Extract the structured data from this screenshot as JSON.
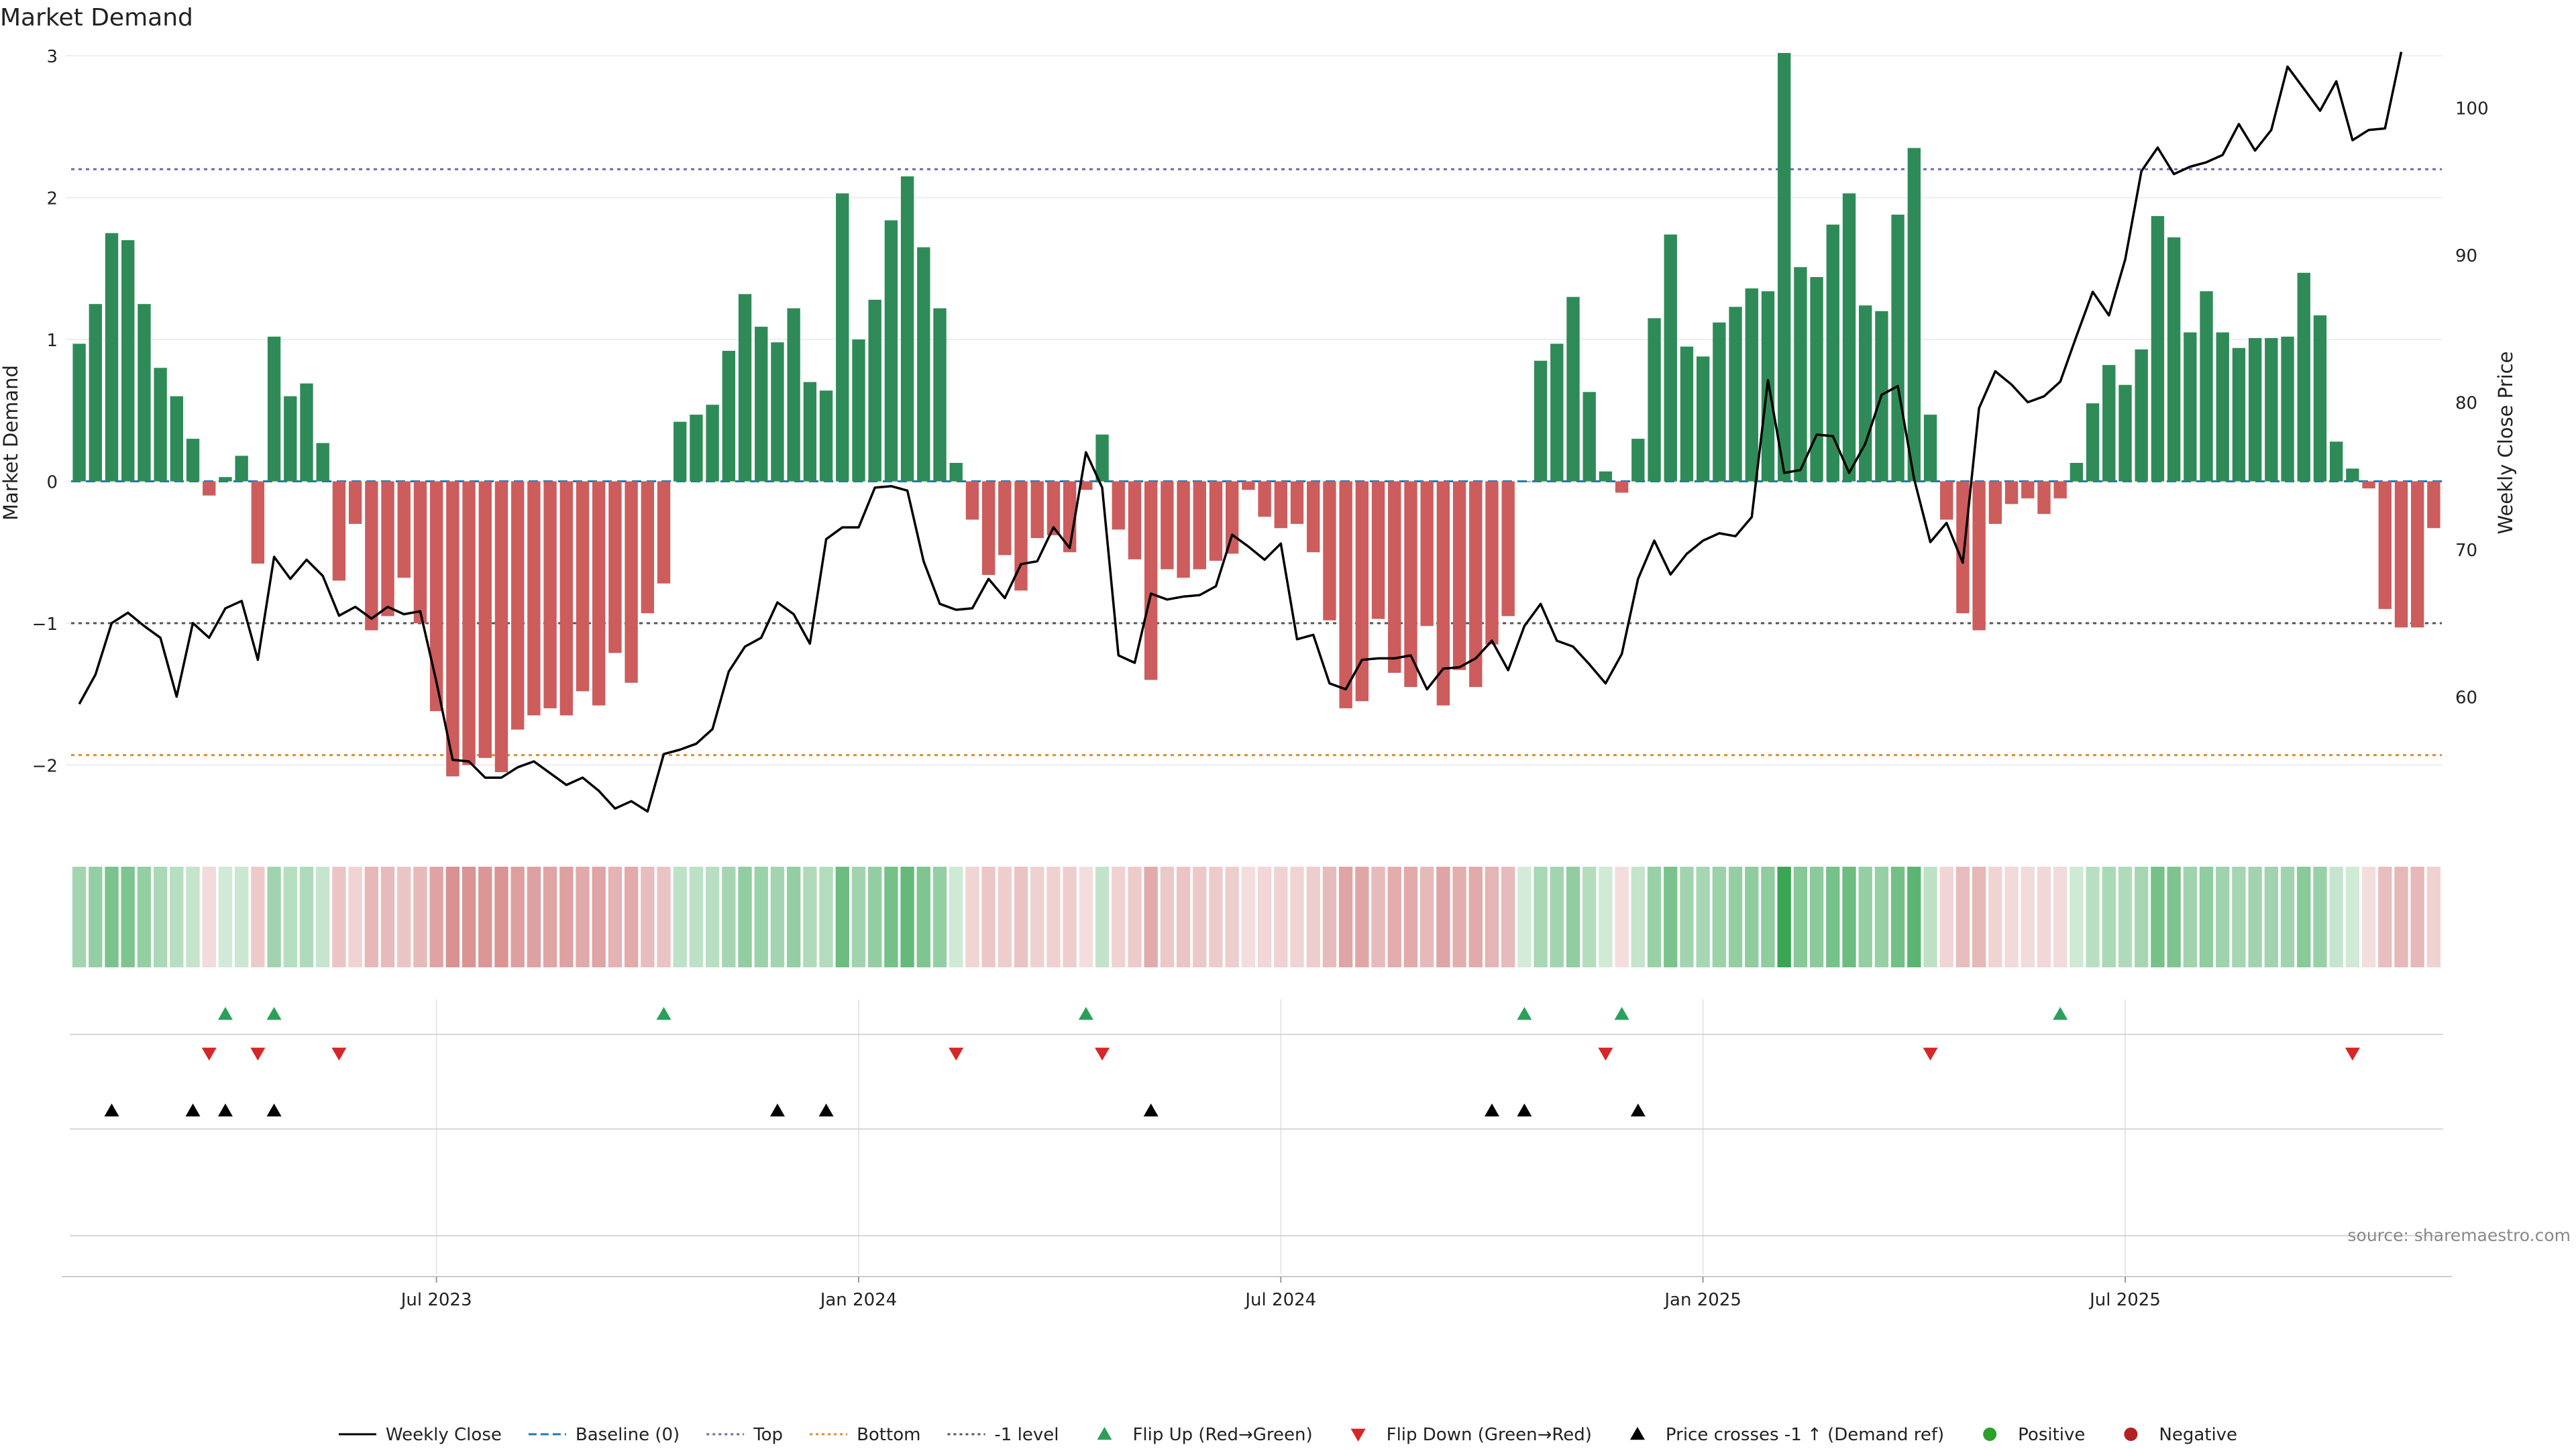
{
  "chart_data": {
    "type": "bar",
    "title": "Market Demand",
    "ylabel_left": "Market Demand",
    "ylabel_right": "Weekly Close Price",
    "ylim_left": [
      -2.4,
      3.1
    ],
    "ylim_right": [
      51.5,
      104.5
    ],
    "left_ticks": [
      {
        "v": 3,
        "label": "3"
      },
      {
        "v": 2,
        "label": "2"
      },
      {
        "v": 1,
        "label": "1"
      },
      {
        "v": 0,
        "label": "0"
      },
      {
        "v": -1,
        "label": "−1"
      },
      {
        "v": -2,
        "label": "−2"
      }
    ],
    "right_ticks": [
      {
        "v": 100,
        "label": "100"
      },
      {
        "v": 90,
        "label": "90"
      },
      {
        "v": 80,
        "label": "80"
      },
      {
        "v": 70,
        "label": "70"
      },
      {
        "v": 60,
        "label": "60"
      }
    ],
    "x_ticks": [
      {
        "i": 22,
        "label": "Jul 2023"
      },
      {
        "i": 48,
        "label": "Jan 2024"
      },
      {
        "i": 74,
        "label": "Jul 2024"
      },
      {
        "i": 100,
        "label": "Jan 2025"
      },
      {
        "i": 126,
        "label": "Jul 2025"
      }
    ],
    "reference_lines": {
      "top": 2.2,
      "bottom": -1.93,
      "minus_one": -1.0,
      "baseline": 0
    },
    "demand": [
      0.97,
      1.25,
      1.75,
      1.7,
      1.25,
      0.8,
      0.6,
      0.3,
      -0.1,
      0.03,
      0.18,
      -0.58,
      1.02,
      0.6,
      0.69,
      0.27,
      -0.7,
      -0.3,
      -1.05,
      -0.95,
      -0.68,
      -1.0,
      -1.62,
      -2.08,
      -2.0,
      -1.95,
      -2.05,
      -1.75,
      -1.65,
      -1.6,
      -1.65,
      -1.48,
      -1.58,
      -1.21,
      -1.42,
      -0.93,
      -0.72,
      0.42,
      0.47,
      0.54,
      0.92,
      1.32,
      1.09,
      0.98,
      1.22,
      0.7,
      0.64,
      2.03,
      1.0,
      1.28,
      1.84,
      2.15,
      1.65,
      1.22,
      0.13,
      -0.27,
      -0.66,
      -0.52,
      -0.77,
      -0.4,
      -0.38,
      -0.5,
      -0.06,
      0.33,
      -0.34,
      -0.55,
      -1.4,
      -0.62,
      -0.68,
      -0.62,
      -0.56,
      -0.51,
      -0.06,
      -0.25,
      -0.33,
      -0.3,
      -0.5,
      -0.98,
      -1.6,
      -1.55,
      -0.97,
      -1.35,
      -1.45,
      -1.02,
      -1.58,
      -1.33,
      -1.45,
      -1.15,
      -0.95,
      0.0,
      0.85,
      0.97,
      1.3,
      0.63,
      0.07,
      -0.08,
      0.3,
      1.15,
      1.74,
      0.95,
      0.88,
      1.12,
      1.23,
      1.36,
      1.34,
      3.02,
      1.51,
      1.44,
      1.81,
      2.03,
      1.24,
      1.2,
      1.88,
      2.35,
      0.47,
      -0.27,
      -0.93,
      -1.05,
      -0.3,
      -0.16,
      -0.12,
      -0.23,
      -0.12,
      0.13,
      0.55,
      0.82,
      0.68,
      0.93,
      1.87,
      1.72,
      1.05,
      1.34,
      1.05,
      0.94,
      1.01,
      1.01,
      1.02,
      1.47,
      1.17,
      0.28,
      0.09,
      -0.05,
      -0.9,
      -1.03,
      -1.03,
      -0.33
    ],
    "close": [
      59.5,
      61.5,
      65.0,
      65.7,
      64.8,
      64.0,
      60.0,
      65.0,
      64.0,
      66.0,
      66.5,
      62.5,
      69.5,
      68.0,
      69.3,
      68.2,
      65.5,
      66.1,
      65.3,
      66.1,
      65.6,
      65.8,
      61.0,
      55.7,
      55.6,
      54.5,
      54.5,
      55.2,
      55.6,
      54.8,
      54.0,
      54.5,
      53.6,
      52.4,
      52.9,
      52.2,
      56.1,
      56.4,
      56.8,
      57.8,
      61.7,
      63.4,
      64.0,
      66.4,
      65.6,
      63.6,
      70.7,
      71.5,
      71.5,
      74.2,
      74.3,
      74.0,
      69.2,
      66.3,
      65.9,
      66.0,
      68.0,
      66.7,
      69.0,
      69.2,
      71.5,
      70.1,
      76.6,
      74.2,
      62.8,
      62.3,
      67.0,
      66.6,
      66.8,
      66.9,
      67.5,
      71.0,
      70.2,
      69.3,
      70.4,
      63.9,
      64.2,
      60.9,
      60.5,
      62.5,
      62.6,
      62.6,
      62.8,
      60.5,
      61.9,
      62.0,
      62.6,
      63.8,
      61.8,
      64.8,
      66.3,
      63.8,
      63.4,
      62.2,
      60.9,
      62.9,
      68.0,
      70.6,
      68.3,
      69.7,
      70.6,
      71.1,
      70.9,
      72.2,
      81.5,
      75.2,
      75.4,
      77.8,
      77.7,
      75.2,
      77.2,
      80.5,
      81.1,
      74.8,
      70.5,
      71.8,
      69.1,
      79.6,
      82.1,
      81.2,
      80.0,
      80.4,
      81.4,
      84.5,
      87.5,
      85.9,
      89.7,
      95.7,
      97.3,
      95.5,
      96.0,
      96.3,
      96.8,
      98.9,
      97.1,
      98.5,
      102.8,
      101.3,
      99.8,
      101.8,
      97.8,
      98.5,
      98.6,
      103.8
    ],
    "flip_up_idx": [
      9,
      12,
      36,
      62,
      89,
      95,
      122
    ],
    "flip_down_idx": [
      8,
      11,
      16,
      54,
      63,
      94,
      114,
      140
    ],
    "price_cross_idx": [
      2,
      7,
      9,
      12,
      43,
      46,
      66,
      87,
      89,
      96
    ],
    "legend": [
      {
        "name": "Weekly Close",
        "kind": "line-solid",
        "color": "#000000"
      },
      {
        "name": "Baseline (0)",
        "kind": "line-dash",
        "color": "#1f77b4"
      },
      {
        "name": "Top",
        "kind": "line-dot",
        "color": "#6a6aa8"
      },
      {
        "name": "Bottom",
        "kind": "line-dot",
        "color": "#e08a2c"
      },
      {
        "name": "-1 level",
        "kind": "line-dot",
        "color": "#555555"
      },
      {
        "name": "Flip Up (Red→Green)",
        "kind": "tri-up",
        "color": "#2ca05a"
      },
      {
        "name": "Flip Down (Green→Red)",
        "kind": "tri-down",
        "color": "#d62728"
      },
      {
        "name": "Price crosses -1 ↑ (Demand ref)",
        "kind": "tri-up",
        "color": "#000000"
      },
      {
        "name": "Positive",
        "kind": "dot",
        "color": "#2ca02c"
      },
      {
        "name": "Negative",
        "kind": "dot",
        "color": "#b22222"
      }
    ],
    "colors": {
      "positive_bar": "#2e8b57",
      "negative_bar": "#cd5c5c",
      "strip_green": "#3aa655",
      "strip_red": "#cd6f6f"
    }
  },
  "source_note": "source: sharemaestro.com"
}
